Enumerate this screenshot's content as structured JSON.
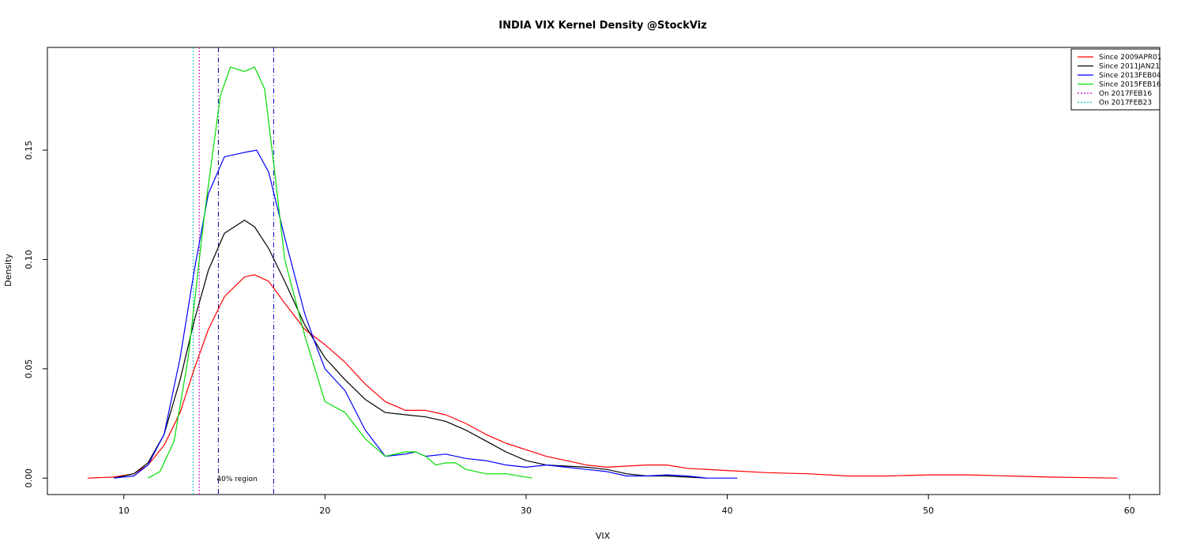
{
  "chart_data": {
    "type": "line",
    "title": "INDIA VIX Kernel Density @StockViz",
    "xlabel": "VIX",
    "ylabel": "Density",
    "xlim": [
      6.2,
      61.5
    ],
    "ylim": [
      -0.0075,
      0.197
    ],
    "x_ticks": [
      10,
      20,
      30,
      40,
      50,
      60
    ],
    "y_ticks": [
      0.0,
      0.05,
      0.1,
      0.15
    ],
    "y_tick_labels": [
      "0.00",
      "0.05",
      "0.10",
      "0.15"
    ],
    "grid": false,
    "legend_position": "top-right",
    "series": [
      {
        "name": "Since 2009APR01",
        "color": "#ff0000",
        "x": [
          8.2,
          9.5,
          10.5,
          11.2,
          12,
          12.8,
          13.5,
          14.2,
          15,
          16,
          16.5,
          17.2,
          18,
          19,
          20,
          21,
          22,
          23,
          24,
          25,
          26,
          27,
          28,
          29,
          30,
          31,
          32,
          33,
          34,
          35,
          36,
          37,
          38,
          40,
          42,
          44,
          46,
          48,
          50,
          52,
          54,
          56,
          58,
          59.4
        ],
        "y": [
          0.0,
          0.0005,
          0.002,
          0.006,
          0.015,
          0.03,
          0.05,
          0.068,
          0.083,
          0.092,
          0.093,
          0.09,
          0.08,
          0.068,
          0.061,
          0.053,
          0.043,
          0.035,
          0.031,
          0.031,
          0.029,
          0.025,
          0.02,
          0.016,
          0.013,
          0.01,
          0.008,
          0.006,
          0.005,
          0.0055,
          0.006,
          0.006,
          0.0045,
          0.0035,
          0.0025,
          0.002,
          0.001,
          0.001,
          0.0015,
          0.0015,
          0.001,
          0.0005,
          0.0002,
          0.0
        ]
      },
      {
        "name": "Since 2011JAN21",
        "color": "#000000",
        "x": [
          9.5,
          10.5,
          11.2,
          12,
          12.8,
          13.5,
          14.2,
          15,
          16,
          16.5,
          17.2,
          18,
          19,
          20,
          21,
          22,
          23,
          24,
          25,
          26,
          27,
          28,
          29,
          30,
          31,
          32,
          33,
          34,
          35,
          36,
          37,
          38,
          39
        ],
        "y": [
          0.0,
          0.002,
          0.007,
          0.02,
          0.045,
          0.072,
          0.095,
          0.112,
          0.118,
          0.115,
          0.105,
          0.09,
          0.07,
          0.055,
          0.045,
          0.036,
          0.03,
          0.029,
          0.028,
          0.026,
          0.022,
          0.017,
          0.012,
          0.008,
          0.006,
          0.0055,
          0.005,
          0.004,
          0.002,
          0.001,
          0.001,
          0.0005,
          0.0
        ]
      },
      {
        "name": "Since 2013FEB04",
        "color": "#0000ff",
        "x": [
          9.5,
          10.5,
          11.2,
          12,
          12.8,
          13.5,
          14.2,
          15,
          16,
          16.6,
          17.2,
          18,
          19,
          19.5,
          20,
          21,
          22,
          23,
          24,
          24.5,
          25,
          26,
          27,
          28,
          29,
          30,
          31,
          32,
          33,
          34,
          35,
          36,
          37,
          38,
          39,
          40.5
        ],
        "y": [
          0.0,
          0.001,
          0.006,
          0.02,
          0.055,
          0.095,
          0.13,
          0.147,
          0.149,
          0.15,
          0.14,
          0.11,
          0.075,
          0.062,
          0.05,
          0.04,
          0.022,
          0.01,
          0.011,
          0.012,
          0.01,
          0.011,
          0.009,
          0.008,
          0.006,
          0.005,
          0.006,
          0.005,
          0.004,
          0.003,
          0.001,
          0.001,
          0.0015,
          0.001,
          0.0,
          0.0
        ]
      },
      {
        "name": "Since 2015FEB16",
        "color": "#00dd00",
        "x": [
          11.2,
          11.8,
          12.5,
          13.2,
          14,
          14.8,
          15.3,
          16,
          16.5,
          17,
          17.5,
          18,
          19,
          20,
          21,
          22,
          23,
          24,
          24.5,
          25,
          25.5,
          26,
          26.5,
          27,
          28,
          29,
          30.3
        ],
        "y": [
          0.0,
          0.003,
          0.017,
          0.055,
          0.12,
          0.175,
          0.188,
          0.186,
          0.188,
          0.178,
          0.14,
          0.1,
          0.065,
          0.035,
          0.03,
          0.018,
          0.01,
          0.012,
          0.012,
          0.01,
          0.006,
          0.007,
          0.007,
          0.004,
          0.002,
          0.002,
          0.0
        ]
      }
    ],
    "vlines": [
      {
        "name": "On 2017FEB16",
        "x": 13.75,
        "color": "#cc00cc",
        "style": "dotted"
      },
      {
        "name": "On 2017FEB23",
        "x": 13.45,
        "color": "#00bbbb",
        "style": "dotted"
      }
    ],
    "region_lines": [
      {
        "x": 14.7,
        "color": "#000080",
        "style": "dashdot"
      },
      {
        "x": 17.45,
        "color": "#0000cc",
        "style": "dashdot"
      }
    ],
    "annotation": {
      "text": "40% region",
      "x": 14.7,
      "y": 0.0
    }
  }
}
